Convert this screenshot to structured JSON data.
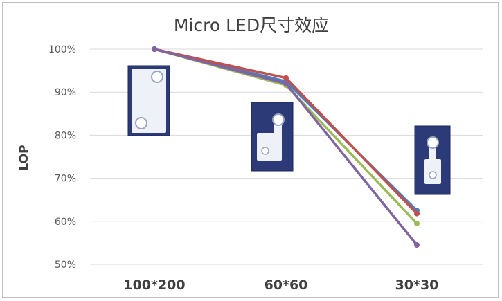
{
  "chart_data": {
    "type": "line",
    "title": "Micro LED尺寸效应",
    "xlabel": "",
    "ylabel": "LOP",
    "categories": [
      "100*200",
      "60*60",
      "30*30"
    ],
    "ylim": [
      50,
      100
    ],
    "yticks": [
      "50%",
      "60%",
      "70%",
      "80%",
      "90%",
      "100%"
    ],
    "grid": true,
    "legend": "none",
    "series": [
      {
        "color": "#4a7ebb",
        "values": [
          100,
          92.5,
          62.5
        ]
      },
      {
        "color": "#c0504d",
        "values": [
          100,
          93.3,
          61.8
        ]
      },
      {
        "color": "#9bbb59",
        "values": [
          100,
          91.6,
          59.5
        ]
      },
      {
        "color": "#8064a2",
        "values": [
          100,
          92.0,
          54.5
        ]
      }
    ],
    "insets": [
      {
        "category": "100*200",
        "label": "chip-100x200-photo"
      },
      {
        "category": "60*60",
        "label": "chip-60x60-photo"
      },
      {
        "category": "30*30",
        "label": "chip-30x30-photo"
      }
    ]
  }
}
